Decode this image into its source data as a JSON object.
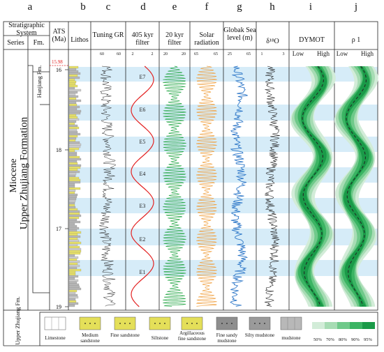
{
  "column_letters": [
    "a",
    "b",
    "c",
    "d",
    "e",
    "f",
    "g",
    "h",
    "i",
    "j"
  ],
  "header": {
    "strat_system": "Stratigraphic System",
    "series": "Series",
    "fm": "Fm.",
    "ats_title": "ATS",
    "ats_unit": "(Ma)",
    "lithos": "Lithos",
    "tuning_gr": "Tuning GR",
    "gr_scale_min": "60",
    "gr_scale_max": "60",
    "filter405": "405 kyr filter",
    "filter405_min": "2",
    "filter405_max": "2",
    "filter20": "20 kyr filter",
    "filter20_min": "20",
    "filter20_max": "20",
    "solar": "Solar radiation",
    "solar_min": "65",
    "solar_max": "65",
    "sea_level": "Globak Sea level (m)",
    "sea_min": "25",
    "sea_max": "65",
    "d18o": "δ¹⁸O",
    "d18o_min": "1",
    "d18o_max": "3",
    "dymot": "DYMOT",
    "rho": "ρ 1",
    "low": "Low",
    "high": "High"
  },
  "strat": {
    "series": "Miocene",
    "formation": "Upper Zhujiang Formation",
    "top_formation": "Hanjiang Fm.",
    "bottom_formation": "Upper Zhujiang Fm.",
    "boundary_age": "15.98"
  },
  "ages": [
    "16",
    "17",
    "18",
    "17",
    "19"
  ],
  "cycles": [
    "E7",
    "E6",
    "E5",
    "E4",
    "E3",
    "E2",
    "E1"
  ],
  "legend": {
    "items": [
      "Limestone",
      "Medium sandstone",
      "Fine sandstone",
      "Siltstone",
      "Argillaceous fine sandstone",
      "Fine sandy mudstone",
      "Silty mudstone",
      "mudstone"
    ],
    "percent": [
      "50%",
      "70%",
      "80%",
      "90%",
      "95%"
    ]
  },
  "colors": {
    "filter405": "#e32222",
    "filter20": "#2aa84a",
    "solar": "#f0a040",
    "sea": "#2f78c8",
    "band": "#d6ecf8",
    "dymot": "#1fa84a",
    "boundary": "#e32222"
  }
}
